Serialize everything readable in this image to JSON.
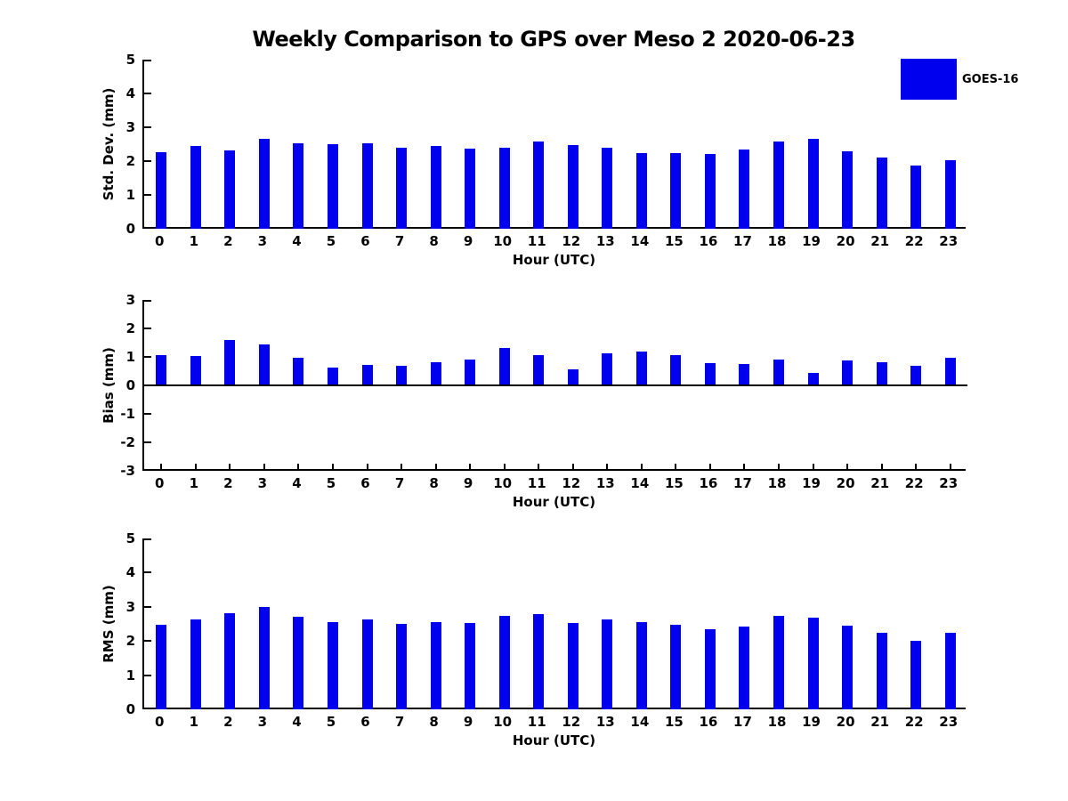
{
  "title": "Weekly Comparison to GPS over Meso 2 2020-06-23",
  "legend": {
    "label": "GOES-16",
    "color": "#0000EE"
  },
  "chart_data": [
    {
      "type": "bar",
      "title": "",
      "ylabel": "Std. Dev. (mm)",
      "xlabel": "Hour (UTC)",
      "categories": [
        "0",
        "1",
        "2",
        "3",
        "4",
        "5",
        "6",
        "7",
        "8",
        "9",
        "10",
        "11",
        "12",
        "13",
        "14",
        "15",
        "16",
        "17",
        "18",
        "19",
        "20",
        "21",
        "22",
        "23"
      ],
      "series": [
        {
          "name": "GOES-16",
          "values": [
            2.27,
            2.45,
            2.32,
            2.65,
            2.52,
            2.5,
            2.52,
            2.4,
            2.45,
            2.37,
            2.4,
            2.58,
            2.47,
            2.4,
            2.24,
            2.24,
            2.21,
            2.34,
            2.58,
            2.66,
            2.29,
            2.1,
            1.87,
            2.02
          ]
        }
      ],
      "ylim": [
        0,
        5
      ],
      "yticks": [
        0,
        1,
        2,
        3,
        4,
        5
      ],
      "grid": false,
      "legend_position": "upper-right-outside"
    },
    {
      "type": "bar",
      "title": "",
      "ylabel": "Bias (mm)",
      "xlabel": "Hour (UTC)",
      "categories": [
        "0",
        "1",
        "2",
        "3",
        "4",
        "5",
        "6",
        "7",
        "8",
        "9",
        "10",
        "11",
        "12",
        "13",
        "14",
        "15",
        "16",
        "17",
        "18",
        "19",
        "20",
        "21",
        "22",
        "23"
      ],
      "series": [
        {
          "name": "GOES-16",
          "values": [
            1.05,
            1.02,
            1.58,
            1.43,
            0.97,
            0.62,
            0.72,
            0.68,
            0.8,
            0.92,
            1.31,
            1.05,
            0.55,
            1.13,
            1.18,
            1.06,
            0.78,
            0.76,
            0.9,
            0.45,
            0.87,
            0.81,
            0.69,
            0.96
          ]
        }
      ],
      "ylim": [
        -3,
        3
      ],
      "yticks": [
        3,
        2,
        1,
        0,
        -1,
        -2,
        -3
      ],
      "grid": false,
      "zero_line": true
    },
    {
      "type": "bar",
      "title": "",
      "ylabel": "RMS (mm)",
      "xlabel": "Hour (UTC)",
      "categories": [
        "0",
        "1",
        "2",
        "3",
        "4",
        "5",
        "6",
        "7",
        "8",
        "9",
        "10",
        "11",
        "12",
        "13",
        "14",
        "15",
        "16",
        "17",
        "18",
        "19",
        "20",
        "21",
        "22",
        "23"
      ],
      "series": [
        {
          "name": "GOES-16",
          "values": [
            2.48,
            2.63,
            2.81,
            3.0,
            2.71,
            2.56,
            2.63,
            2.49,
            2.56,
            2.53,
            2.74,
            2.79,
            2.53,
            2.64,
            2.54,
            2.47,
            2.35,
            2.43,
            2.74,
            2.68,
            2.45,
            2.24,
            2.0,
            2.24
          ]
        }
      ],
      "ylim": [
        0,
        5
      ],
      "yticks": [
        0,
        1,
        2,
        3,
        4,
        5
      ],
      "grid": false,
      "zero_line": false
    }
  ]
}
